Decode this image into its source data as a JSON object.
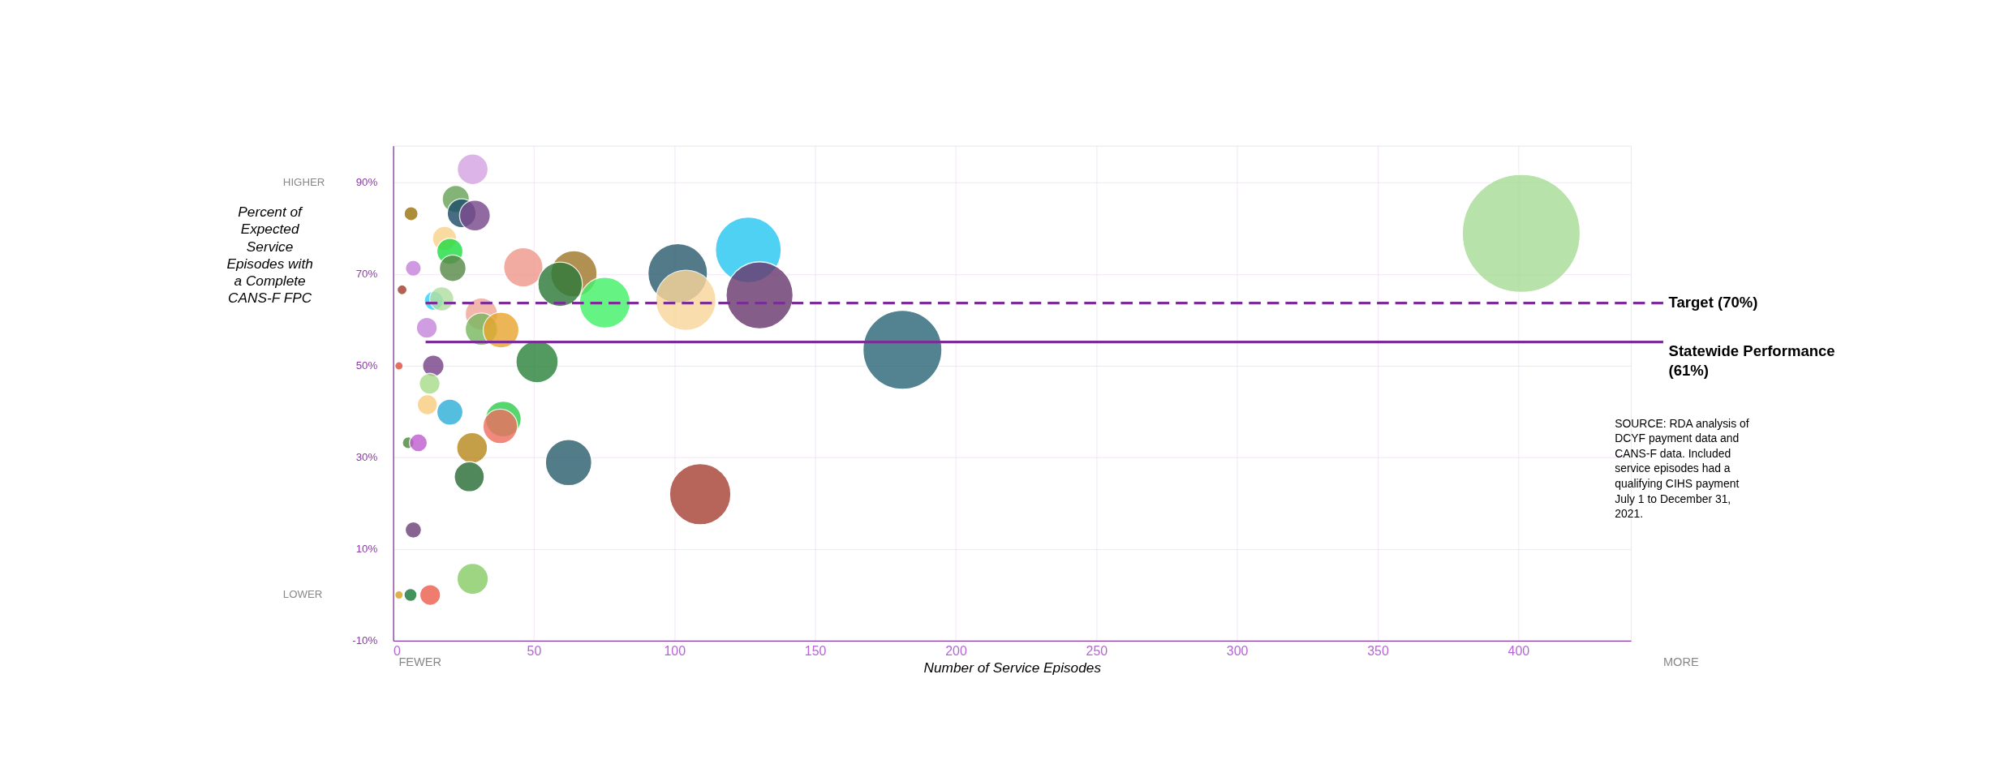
{
  "chart_data": {
    "type": "bubble",
    "xlabel": "Number of Service Episodes",
    "ylabel": "Percent of Expected Service Episodes with a Complete CANS-F FPC",
    "x": [
      28.2,
      22.2,
      24.3,
      29.0,
      6.3,
      18.2,
      20.1,
      21.1,
      7.1,
      46.2,
      64.2,
      59.3,
      75.2,
      101.1,
      104.0,
      126.2,
      130.2,
      3.1,
      14.4,
      17.2,
      31.3,
      31.3,
      38.3,
      11.9,
      51.1,
      2.0,
      14.2,
      12.9,
      12.1,
      20.1,
      39.1,
      38.0,
      5.3,
      8.9,
      28.0,
      27.0,
      62.3,
      109.1,
      7.1,
      28.2,
      2.0,
      6.1,
      13.1,
      181,
      401
    ],
    "values": [
      92.9,
      86.4,
      83.3,
      82.8,
      83.2,
      77.8,
      75.0,
      71.3,
      71.3,
      71.5,
      70.1,
      67.8,
      63.8,
      70.2,
      64.3,
      75.3,
      65.4,
      66.6,
      64.2,
      64.6,
      61.3,
      58.0,
      57.8,
      58.3,
      50.9,
      50.0,
      50.0,
      46.1,
      41.5,
      39.9,
      38.4,
      36.8,
      33.2,
      33.2,
      32.1,
      25.8,
      28.9,
      22.0,
      14.2,
      3.5,
      0.0,
      0.0,
      0.0,
      53.5,
      78.9
    ],
    "sizes": [
      0.068,
      0.053,
      0.06,
      0.068,
      0.014,
      0.042,
      0.049,
      0.051,
      0.018,
      0.111,
      0.154,
      0.142,
      0.186,
      0.255,
      0.26,
      0.312,
      0.323,
      0.007,
      0.026,
      0.042,
      0.075,
      0.075,
      0.092,
      0.031,
      0.128,
      0.005,
      0.033,
      0.031,
      0.029,
      0.049,
      0.092,
      0.086,
      0.01,
      0.023,
      0.068,
      0.065,
      0.154,
      0.27,
      0.019,
      0.07,
      0.005,
      0.012,
      0.031,
      0.448,
      1
    ],
    "colors": [
      "#d6a4e3",
      "#6aa35a",
      "#1f4e6b",
      "#7b4a8e",
      "#9c7410",
      "#f8d28c",
      "#22dd44",
      "#5a8a4a",
      "#c685dc",
      "#f0998c",
      "#a07a2c",
      "#2e7a3a",
      "#44f26a",
      "#2e5e6e",
      "#f9d69a",
      "#29c8f2",
      "#6a3a70",
      "#a04030",
      "#33d0f8",
      "#b0e0a0",
      "#f0a898",
      "#7ab860",
      "#e8a630",
      "#c888dc",
      "#2e843e",
      "#e05040",
      "#7a4488",
      "#a8dc8c",
      "#f8cc80",
      "#30b0d8",
      "#33cc50",
      "#ee7060",
      "#4a8a3a",
      "#c060d0",
      "#b88a20",
      "#2a6e38",
      "#2e6070",
      "#a84438",
      "#6e4478",
      "#88cc68",
      "#d8a020",
      "#1a7a3a",
      "#ec6050",
      "#2e6878",
      "#a8dc98"
    ],
    "xlim": [
      0,
      440
    ],
    "xticks": [
      0,
      50,
      100,
      150,
      200,
      250,
      300,
      350,
      400
    ],
    "ylim": [
      -10,
      98
    ],
    "yticks": [
      {
        "value": -10,
        "label": "-10%"
      },
      {
        "value": 10,
        "label": "10%"
      },
      {
        "value": 30,
        "label": "30%"
      },
      {
        "value": 50,
        "label": "50%"
      },
      {
        "value": 70,
        "label": "70%"
      },
      {
        "value": 90,
        "label": "90%"
      }
    ],
    "grid": true,
    "ref_lines": [
      {
        "axis": "y",
        "value": 63.7,
        "label": "Target (70%)",
        "color": "#7b2d96",
        "line_style": "dashed"
      },
      {
        "axis": "y",
        "value": 55.2,
        "label": "Statewide Performance (61%)",
        "color": "#7b2d96",
        "line_style": "solid"
      }
    ],
    "annotations": [
      "HIGHER",
      "LOWER",
      "FEWER",
      "MORE",
      "SOURCE: RDA analysis of DCYF payment data and CANS-F data. Included service episodes had a qualifying CIHS payment July 1 to December 31, 2021."
    ]
  }
}
